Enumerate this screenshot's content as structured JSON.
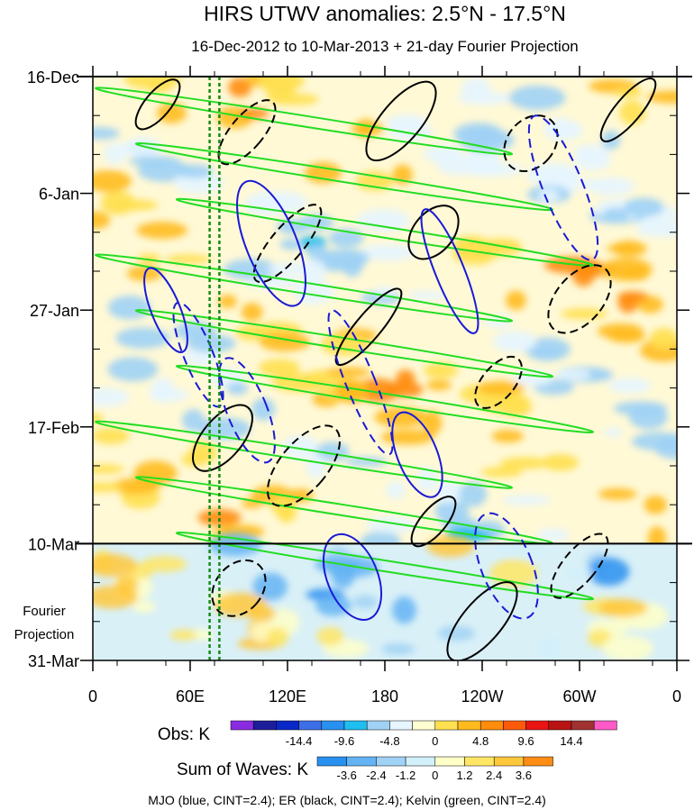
{
  "chart_data": {
    "type": "heatmap",
    "title": "HIRS UTWV anomalies: 2.5°N - 17.5°N",
    "subtitle": "16-Dec-2012 to 10-Mar-2013 + 21-day Fourier Projection",
    "x_ticks": [
      {
        "lon": 0,
        "label": "0"
      },
      {
        "lon": 60,
        "label": "60E"
      },
      {
        "lon": 120,
        "label": "120E"
      },
      {
        "lon": 180,
        "label": "180"
      },
      {
        "lon": 240,
        "label": "120W"
      },
      {
        "lon": 300,
        "label": "60W"
      },
      {
        "lon": 360,
        "label": "0"
      }
    ],
    "y_ticks": [
      {
        "day": 0,
        "label": "16-Dec"
      },
      {
        "day": 21,
        "label": "6-Jan"
      },
      {
        "day": 42,
        "label": "27-Jan"
      },
      {
        "day": 63,
        "label": "17-Feb"
      },
      {
        "day": 84,
        "label": "10-Mar"
      },
      {
        "day": 105,
        "label": "31-Mar"
      }
    ],
    "xlim": [
      0,
      360
    ],
    "ylim_days": [
      0,
      105
    ],
    "observation_end_day": 84,
    "projection_label_line1": "Fourier",
    "projection_label_line2": "Projection",
    "reference_lons": [
      72,
      78
    ],
    "obs_legend": {
      "title": "Obs: K",
      "labels": [
        "-14.4",
        "-9.6",
        "-4.8",
        "0",
        "4.8",
        "9.6",
        "14.4"
      ],
      "colors": [
        "#8a2be2",
        "#1e1e9a",
        "#0a28c8",
        "#3c6ee6",
        "#2891f0",
        "#1ebef0",
        "#a0d2f5",
        "#e6f5ff",
        "#ffffd2",
        "#ffe050",
        "#ffbb1e",
        "#ff8c0a",
        "#ff5a0a",
        "#eb1414",
        "#b91414",
        "#a03232",
        "#ff5ac8"
      ]
    },
    "waves_legend": {
      "title": "Sum of Waves: K",
      "labels": [
        "-3.6",
        "-2.4",
        "-1.2",
        "0",
        "1.2",
        "2.4",
        "3.6"
      ],
      "colors": [
        "#2891f0",
        "#64b4f5",
        "#a0d2f5",
        "#d2f0fa",
        "#ffffc8",
        "#ffe664",
        "#ffc83c",
        "#ff8c14"
      ]
    },
    "series": [
      {
        "name": "MJO",
        "color": "blue",
        "cint": 2.4
      },
      {
        "name": "ER",
        "color": "black",
        "cint": 2.4
      },
      {
        "name": "Kelvin",
        "color": "green",
        "cint": 2.4
      }
    ],
    "footer": "MJO (blue, CINT=2.4); ER (black, CINT=2.4); Kelvin (green, CINT=2.4)"
  }
}
